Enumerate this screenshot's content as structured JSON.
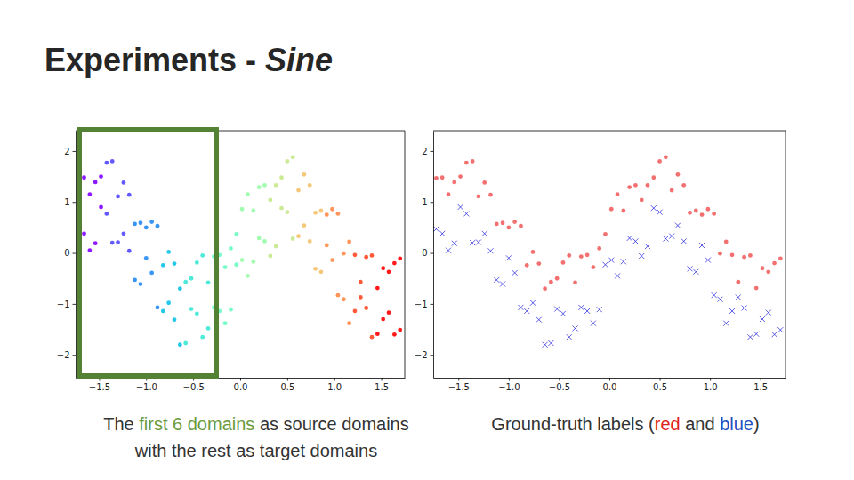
{
  "title": "Experiments - ",
  "title_italic": "Sine",
  "chart_data": [
    {
      "type": "scatter",
      "marker": "circle",
      "xlim": [
        -1.75,
        1.75
      ],
      "xticks": [
        {
          "value": -1.5,
          "label": "−1.5"
        },
        {
          "value": -1.0,
          "label": "−1.0"
        },
        {
          "value": -0.5,
          "label": "−0.5"
        },
        {
          "value": 0.0,
          "label": "0.0"
        },
        0.5,
        {
          "value": 1.0,
          "label": "1.0"
        },
        1.5
      ],
      "ylim": [
        -2.45,
        2.4
      ],
      "yticks": [
        {
          "value": -2,
          "label": "−2"
        },
        {
          "value": -1,
          "label": "−1"
        },
        0,
        1,
        2
      ],
      "caption": [
        [
          {
            "text": "The "
          },
          {
            "text": "first 6 domains",
            "color": "#6a9a3c"
          },
          {
            "text": " as source domains"
          }
        ],
        [
          {
            "text": "with the rest as target domains"
          }
        ]
      ],
      "series": [
        {
          "color": "#8000ff",
          "x": [
            -1.72,
            -1.66,
            -1.6,
            -1.54,
            -1.48,
            -1.72,
            -1.66,
            -1.6,
            -1.54,
            -1.48
          ],
          "values": [
            1.47,
            1.48,
            1.15,
            1.39,
            1.5,
            0.47,
            0.38,
            0.05,
            0.19,
            0.9
          ]
        },
        {
          "color": "#5148fc",
          "x": [
            -1.42,
            -1.36,
            -1.3,
            -1.24,
            -1.18,
            -1.42,
            -1.36,
            -1.3,
            -1.24,
            -1.18
          ],
          "values": [
            1.77,
            1.8,
            1.11,
            1.38,
            1.14,
            0.77,
            0.2,
            0.21,
            0.38,
            0.04
          ]
        },
        {
          "color": "#238af5",
          "x": [
            -1.12,
            -1.06,
            -1.0,
            -0.94,
            -0.88,
            -1.12,
            -1.06,
            -1.0,
            -0.94,
            -0.88
          ],
          "values": [
            0.57,
            0.59,
            0.5,
            0.61,
            0.53,
            -0.53,
            -0.61,
            -0.1,
            -0.39,
            -1.07
          ]
        },
        {
          "color": "#0cc1e8",
          "x": [
            -0.82,
            -0.76,
            -0.7,
            -0.64,
            -0.82,
            -0.76,
            -0.7,
            -0.64
          ],
          "values": [
            -0.24,
            0.02,
            -0.21,
            -0.7,
            -1.14,
            -0.98,
            -1.31,
            -1.8
          ]
        },
        {
          "color": "#3ae8d6",
          "x": [
            -0.58,
            -0.52,
            -0.46,
            -0.4,
            -0.34,
            -0.58,
            -0.52,
            -0.46,
            -0.4,
            -0.34
          ],
          "values": [
            -0.57,
            -0.5,
            -0.19,
            -0.05,
            -0.58,
            -1.77,
            -1.1,
            -1.19,
            -1.65,
            -1.48
          ]
        },
        {
          "color": "#68fcc1",
          "x": [
            -0.28,
            -0.22,
            -0.16,
            -0.1,
            -0.04,
            -0.28,
            -0.22,
            -0.16,
            -0.1,
            -0.04
          ],
          "values": [
            -0.07,
            -0.04,
            -0.28,
            0.09,
            0.37,
            -1.07,
            -1.14,
            -1.38,
            -1.11,
            -0.23
          ]
        },
        {
          "color": "#97fca7",
          "x": [
            0.02,
            0.08,
            0.14,
            0.2,
            0.26,
            0.02,
            0.08,
            0.14,
            0.2,
            0.26
          ],
          "values": [
            0.86,
            1.15,
            0.83,
            1.29,
            1.33,
            -0.14,
            -0.45,
            -0.17,
            0.29,
            0.23
          ]
        },
        {
          "color": "#c5e88a",
          "x": [
            0.32,
            0.38,
            0.44,
            0.5,
            0.56,
            0.32,
            0.38,
            0.44,
            0.5,
            0.56
          ],
          "values": [
            1.04,
            1.33,
            1.48,
            1.8,
            1.88,
            -0.06,
            0.13,
            0.88,
            0.8,
            0.28
          ]
        },
        {
          "color": "#f3c16a",
          "x": [
            0.62,
            0.68,
            0.74,
            0.8,
            0.86,
            0.62,
            0.68,
            0.74,
            0.8,
            0.86
          ],
          "values": [
            1.23,
            1.54,
            1.33,
            0.79,
            0.83,
            0.33,
            0.54,
            0.23,
            -0.31,
            -0.37
          ]
        },
        {
          "color": "#ff8a48",
          "x": [
            0.92,
            0.98,
            1.04,
            1.1,
            1.16,
            0.92,
            0.98,
            1.04,
            1.1,
            1.16
          ],
          "values": [
            0.75,
            0.86,
            0.77,
            -0.01,
            0.22,
            0.15,
            -0.14,
            -0.83,
            -0.91,
            -1.38
          ]
        },
        {
          "color": "#ff4824",
          "x": [
            1.22,
            1.28,
            1.34,
            1.4,
            1.22,
            1.28,
            1.34,
            1.4
          ],
          "values": [
            -0.04,
            -0.57,
            -0.08,
            -0.05,
            -1.14,
            -0.87,
            -1.08,
            -1.65
          ]
        },
        {
          "color": "#ff0000",
          "x": [
            1.46,
            1.52,
            1.58,
            1.64,
            1.7,
            1.46,
            1.52,
            1.58,
            1.64,
            1.7
          ],
          "values": [
            -0.69,
            -0.3,
            -0.37,
            -0.2,
            -0.11,
            -1.59,
            -1.3,
            -1.17,
            -1.6,
            -1.51
          ]
        }
      ]
    },
    {
      "type": "scatter",
      "xlim": [
        -1.75,
        1.75
      ],
      "xticks": [
        {
          "value": -1.5,
          "label": "−1.5"
        },
        {
          "value": -1.0,
          "label": "−1.0"
        },
        {
          "value": -0.5,
          "label": "−0.5"
        },
        {
          "value": 0.0,
          "label": "0.0"
        },
        0.5,
        {
          "value": 1.0,
          "label": "1.0"
        },
        1.5
      ],
      "ylim": [
        -2.45,
        2.4
      ],
      "yticks": [
        {
          "value": -2,
          "label": "−2"
        },
        {
          "value": -1,
          "label": "−1"
        },
        0,
        1,
        2
      ],
      "caption": [
        [
          {
            "text": "Ground-truth labels ("
          },
          {
            "text": "red",
            "color": "#e02020"
          },
          {
            "text": " and "
          },
          {
            "text": "blue",
            "color": "#2050c0"
          },
          {
            "text": ")"
          }
        ]
      ],
      "series": [
        {
          "color": "#ee3333",
          "marker": "circle",
          "x": [
            -1.72,
            -1.66,
            -1.6,
            -1.54,
            -1.48,
            -1.42,
            -1.36,
            -1.3,
            -1.24,
            -1.18,
            -1.12,
            -1.06,
            -1.0,
            -0.94,
            -0.88,
            -0.82,
            -0.76,
            -0.7,
            -0.64,
            -0.58,
            -0.52,
            -0.46,
            -0.4,
            -0.34,
            -0.28,
            -0.22,
            -0.16,
            -0.1,
            -0.04,
            0.02,
            0.08,
            0.14,
            0.2,
            0.26,
            0.32,
            0.38,
            0.44,
            0.5,
            0.56,
            0.62,
            0.68,
            0.74,
            0.8,
            0.86,
            0.92,
            0.98,
            1.04,
            1.1,
            1.16,
            1.22,
            1.28,
            1.34,
            1.4,
            1.46,
            1.52,
            1.58,
            1.64,
            1.7
          ],
          "values": [
            1.47,
            1.48,
            1.15,
            1.39,
            1.5,
            1.77,
            1.8,
            1.11,
            1.38,
            1.14,
            0.57,
            0.59,
            0.5,
            0.61,
            0.53,
            -0.24,
            0.02,
            -0.21,
            -0.7,
            -0.57,
            -0.5,
            -0.19,
            -0.05,
            -0.58,
            -0.07,
            -0.04,
            -0.28,
            0.09,
            0.37,
            0.86,
            1.15,
            0.83,
            1.29,
            1.33,
            1.04,
            1.33,
            1.48,
            1.8,
            1.88,
            1.23,
            1.54,
            1.33,
            0.79,
            0.83,
            0.75,
            0.86,
            0.77,
            -0.01,
            0.22,
            -0.04,
            -0.57,
            -0.08,
            -0.05,
            -0.69,
            -0.3,
            -0.37,
            -0.2,
            -0.11
          ]
        },
        {
          "color": "#2222dd",
          "marker": "x",
          "x": [
            -1.72,
            -1.66,
            -1.6,
            -1.54,
            -1.48,
            -1.42,
            -1.36,
            -1.3,
            -1.24,
            -1.18,
            -1.12,
            -1.06,
            -1.0,
            -0.94,
            -0.88,
            -0.82,
            -0.76,
            -0.7,
            -0.64,
            -0.58,
            -0.52,
            -0.46,
            -0.4,
            -0.34,
            -0.28,
            -0.22,
            -0.16,
            -0.1,
            -0.04,
            0.02,
            0.08,
            0.14,
            0.2,
            0.26,
            0.32,
            0.38,
            0.44,
            0.5,
            0.56,
            0.62,
            0.68,
            0.74,
            0.8,
            0.86,
            0.92,
            0.98,
            1.04,
            1.1,
            1.16,
            1.22,
            1.28,
            1.34,
            1.4,
            1.46,
            1.52,
            1.58,
            1.64,
            1.7
          ],
          "values": [
            0.47,
            0.38,
            0.05,
            0.19,
            0.9,
            0.77,
            0.2,
            0.21,
            0.38,
            0.04,
            -0.53,
            -0.61,
            -0.1,
            -0.39,
            -1.07,
            -1.14,
            -0.98,
            -1.31,
            -1.8,
            -1.77,
            -1.1,
            -1.19,
            -1.65,
            -1.48,
            -1.07,
            -1.14,
            -1.38,
            -1.11,
            -0.23,
            -0.14,
            -0.45,
            -0.17,
            0.29,
            0.23,
            -0.06,
            0.13,
            0.88,
            0.8,
            0.28,
            0.33,
            0.54,
            0.23,
            -0.31,
            -0.37,
            0.15,
            -0.14,
            -0.83,
            -0.91,
            -1.38,
            -1.14,
            -0.87,
            -1.08,
            -1.65,
            -1.59,
            -1.3,
            -1.17,
            -1.6,
            -1.51
          ]
        }
      ]
    }
  ]
}
